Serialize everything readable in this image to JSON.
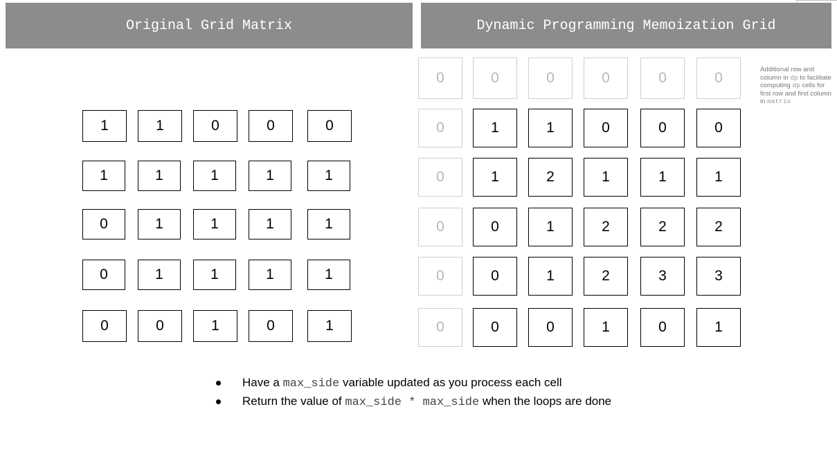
{
  "left_panel": {
    "title": "Original Grid Matrix",
    "matrix": [
      [
        "1",
        "1",
        "0",
        "0",
        "0"
      ],
      [
        "1",
        "1",
        "1",
        "1",
        "1"
      ],
      [
        "0",
        "1",
        "1",
        "1",
        "1"
      ],
      [
        "0",
        "1",
        "1",
        "1",
        "1"
      ],
      [
        "0",
        "0",
        "1",
        "0",
        "1"
      ]
    ]
  },
  "right_panel": {
    "title": "Dynamic Programming Memoization Grid",
    "dp": [
      [
        "0",
        "0",
        "0",
        "0",
        "0",
        "0"
      ],
      [
        "0",
        "1",
        "1",
        "0",
        "0",
        "0"
      ],
      [
        "0",
        "1",
        "2",
        "1",
        "1",
        "1"
      ],
      [
        "0",
        "0",
        "1",
        "2",
        "2",
        "2"
      ],
      [
        "0",
        "0",
        "1",
        "2",
        "3",
        "3"
      ],
      [
        "0",
        "0",
        "0",
        "1",
        "0",
        "1"
      ]
    ],
    "note": {
      "part1": "Additional row and column in ",
      "code1": "dp",
      "part2": " to facilitate computing ",
      "code2": "dp",
      "part3": " cells for first row and first column in ",
      "code3": "matrix"
    }
  },
  "bullets": [
    {
      "before": "Have a ",
      "code": "max_side",
      "after": " variable updated as you process each cell"
    },
    {
      "before": "Return the value of ",
      "code": "max_side * max_side",
      "after": " when the loops are done"
    }
  ],
  "colors": {
    "header_bg": "#8c8c8c",
    "header_text": "#ffffff",
    "pad_cell_text": "#b8b8b8",
    "pad_cell_border": "#cfcfcf"
  }
}
